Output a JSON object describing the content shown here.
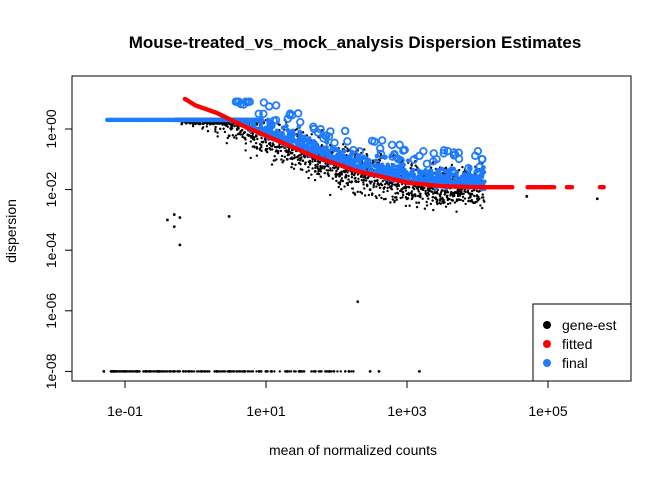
{
  "chart_data": {
    "type": "scatter",
    "title": "Mouse-treated_vs_mock_analysis Dispersion Estimates",
    "xlabel": "mean of normalized counts",
    "ylabel": "dispersion",
    "x_scale": "log10",
    "y_scale": "log10",
    "xlim": [
      0.035,
      1000000
    ],
    "ylim": [
      4e-09,
      20
    ],
    "x_ticks": [
      {
        "value": 0.1,
        "label": "1e-01"
      },
      {
        "value": 10,
        "label": "1e+01"
      },
      {
        "value": 1000,
        "label": "1e+03"
      },
      {
        "value": 100000,
        "label": "1e+05"
      }
    ],
    "y_ticks": [
      {
        "value": 1e-08,
        "label": "1e-08"
      },
      {
        "value": 1e-06,
        "label": "1e-06"
      },
      {
        "value": 0.0001,
        "label": "1e-04"
      },
      {
        "value": 0.01,
        "label": "1e-02"
      },
      {
        "value": 1,
        "label": "1e+00"
      }
    ],
    "grid": false,
    "legend_position": "bottom-right",
    "colors": {
      "gene-est": "#000000",
      "fitted": "#ff0000",
      "final": "#1e7bff"
    },
    "series": [
      {
        "name": "gene-est",
        "color": "#000000",
        "points": [
          [
            0.05,
            1e-08
          ],
          [
            0.07,
            1e-08
          ],
          [
            0.1,
            1e-08
          ],
          [
            0.15,
            1e-08
          ],
          [
            0.2,
            1e-08
          ],
          [
            0.3,
            1e-08
          ],
          [
            0.5,
            1e-08
          ],
          [
            0.8,
            1e-08
          ],
          [
            1.2,
            1e-08
          ],
          [
            2,
            1e-08
          ],
          [
            3,
            1e-08
          ],
          [
            5,
            1e-08
          ],
          [
            8,
            1e-08
          ],
          [
            12,
            1e-08
          ],
          [
            20,
            1e-08
          ],
          [
            30,
            1e-08
          ],
          [
            50,
            1e-08
          ],
          [
            80,
            1e-08
          ],
          [
            150,
            1e-08
          ],
          [
            300,
            1e-08
          ],
          [
            400,
            1e-08
          ],
          [
            1500,
            1e-08
          ],
          [
            0.4,
            0.001
          ],
          [
            0.5,
            0.0015
          ],
          [
            0.6,
            0.0012
          ],
          [
            0.5,
            0.0006
          ],
          [
            0.6,
            0.00015
          ],
          [
            3,
            0.0013
          ],
          [
            200,
            2e-06
          ],
          [
            3,
            0.6
          ],
          [
            5,
            0.5
          ],
          [
            10,
            0.2
          ],
          [
            20,
            0.1
          ],
          [
            50,
            0.04
          ],
          [
            100,
            0.03
          ],
          [
            300,
            0.01
          ],
          [
            1000,
            0.005
          ],
          [
            3000,
            0.005
          ],
          [
            10000,
            0.005
          ],
          [
            50000,
            0.006
          ],
          [
            500000,
            0.005
          ]
        ]
      },
      {
        "name": "fitted",
        "color": "#ff0000",
        "points": [
          [
            0.7,
            10
          ],
          [
            1,
            6
          ],
          [
            2,
            3.4
          ],
          [
            5,
            1.2
          ],
          [
            10,
            0.6
          ],
          [
            20,
            0.3
          ],
          [
            50,
            0.12
          ],
          [
            100,
            0.07
          ],
          [
            200,
            0.04
          ],
          [
            500,
            0.025
          ],
          [
            1000,
            0.017
          ],
          [
            3000,
            0.013
          ],
          [
            10000,
            0.012
          ],
          [
            30000,
            0.012
          ],
          [
            100000,
            0.012
          ],
          [
            200000,
            0.012
          ],
          [
            600000,
            0.012
          ]
        ]
      },
      {
        "name": "final",
        "color": "#1e7bff",
        "points": [
          [
            0.05,
            2
          ],
          [
            0.1,
            2
          ],
          [
            0.3,
            2
          ],
          [
            1,
            2
          ],
          [
            2,
            2
          ],
          [
            3,
            2
          ],
          [
            5,
            1.5
          ],
          [
            10,
            1
          ],
          [
            20,
            0.5
          ],
          [
            50,
            0.3
          ],
          [
            100,
            0.2
          ],
          [
            300,
            0.12
          ],
          [
            1000,
            0.08
          ],
          [
            3000,
            0.05
          ],
          [
            10000,
            0.03
          ],
          [
            30000,
            0.02
          ],
          [
            100000,
            0.015
          ],
          [
            200000,
            0.02
          ],
          [
            600000,
            0.005
          ]
        ]
      }
    ]
  }
}
